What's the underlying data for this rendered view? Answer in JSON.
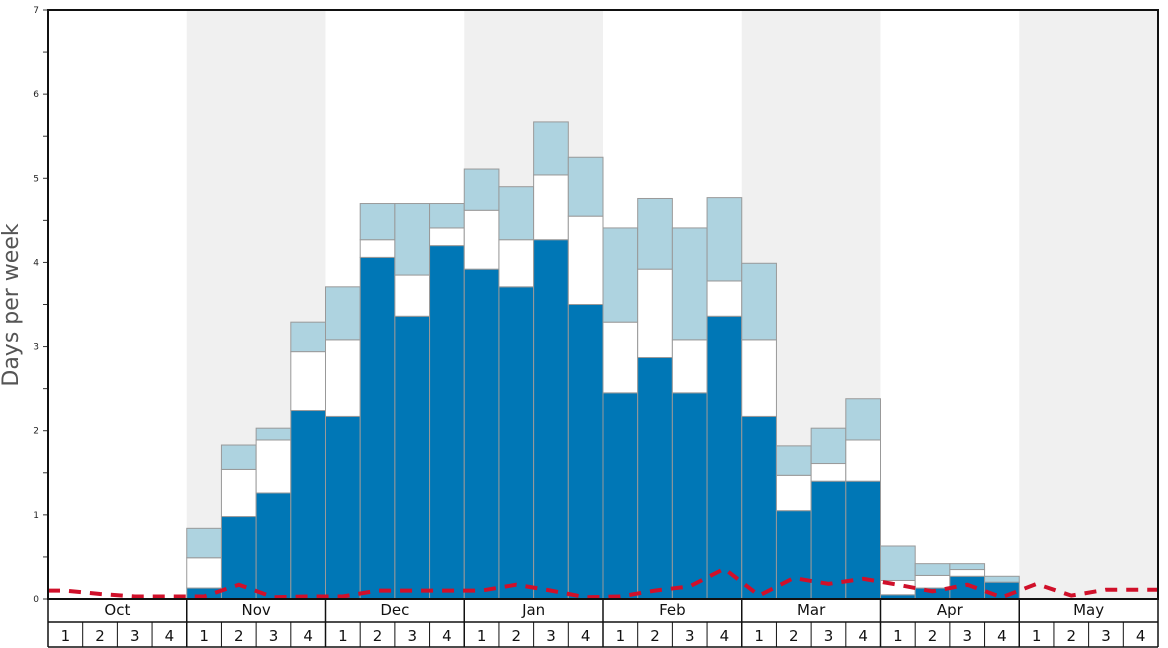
{
  "chart_data": {
    "type": "bar",
    "stacked": true,
    "title": "",
    "xlabel": "",
    "ylabel": "Days per week",
    "ylim": [
      0,
      7
    ],
    "y_ticks": [
      "0",
      "1",
      "2",
      "3",
      "4",
      "5",
      "6",
      "7"
    ],
    "months": [
      "Oct",
      "Nov",
      "Dec",
      "Jan",
      "Feb",
      "Mar",
      "Apr",
      "May"
    ],
    "week_labels": [
      "1",
      "2",
      "3",
      "4"
    ],
    "colors": {
      "bottom": "#0077b6",
      "middle": "#ffffff",
      "top": "#aed3e0",
      "bar_edge": "#999999",
      "line": "#d0102a",
      "band": "#f0f0f0"
    },
    "categories": [
      "Oct 1",
      "Oct 2",
      "Oct 3",
      "Oct 4",
      "Nov 1",
      "Nov 2",
      "Nov 3",
      "Nov 4",
      "Dec 1",
      "Dec 2",
      "Dec 3",
      "Dec 4",
      "Jan 1",
      "Jan 2",
      "Jan 3",
      "Jan 4",
      "Feb 1",
      "Feb 2",
      "Feb 3",
      "Feb 4",
      "Mar 1",
      "Mar 2",
      "Mar 3",
      "Mar 4",
      "Apr 1",
      "Apr 2",
      "Apr 3",
      "Apr 4",
      "May 1",
      "May 2",
      "May 3",
      "May 4"
    ],
    "series": [
      {
        "values": [
          0,
          0,
          0,
          0,
          0.13,
          0.98,
          1.26,
          2.24,
          2.17,
          4.06,
          3.36,
          4.2,
          3.92,
          3.71,
          4.27,
          3.5,
          2.45,
          2.87,
          2.45,
          3.36,
          2.17,
          1.05,
          1.4,
          1.4,
          0.05,
          0.13,
          0.27,
          0.2,
          0,
          0,
          0,
          0
        ]
      },
      {
        "values": [
          0,
          0,
          0,
          0,
          0.36,
          0.56,
          0.63,
          0.7,
          0.91,
          0.21,
          0.49,
          0.21,
          0.7,
          0.56,
          0.77,
          1.05,
          0.84,
          1.05,
          0.63,
          0.42,
          0.91,
          0.42,
          0.21,
          0.49,
          0.17,
          0.15,
          0.08,
          0,
          0,
          0,
          0,
          0
        ]
      },
      {
        "values": [
          0,
          0,
          0,
          0,
          0.35,
          0.29,
          0.14,
          0.35,
          0.63,
          0.43,
          0.85,
          0.29,
          0.49,
          0.63,
          0.63,
          0.7,
          1.12,
          0.84,
          1.33,
          0.99,
          0.91,
          0.35,
          0.42,
          0.49,
          0.41,
          0.14,
          0.07,
          0.07,
          0,
          0,
          0,
          0
        ]
      },
      {
        "type": "line",
        "style": "dashed",
        "values": [
          0.1,
          0.06,
          0.03,
          0.03,
          0.03,
          0.17,
          0.02,
          0.03,
          0.03,
          0.1,
          0.1,
          0.1,
          0.1,
          0.17,
          0.1,
          0.02,
          0.03,
          0.1,
          0.15,
          0.36,
          0.04,
          0.25,
          0.18,
          0.24,
          0.17,
          0.09,
          0.17,
          0.02,
          0.18,
          0.04,
          0.11,
          0.11
        ]
      }
    ]
  }
}
